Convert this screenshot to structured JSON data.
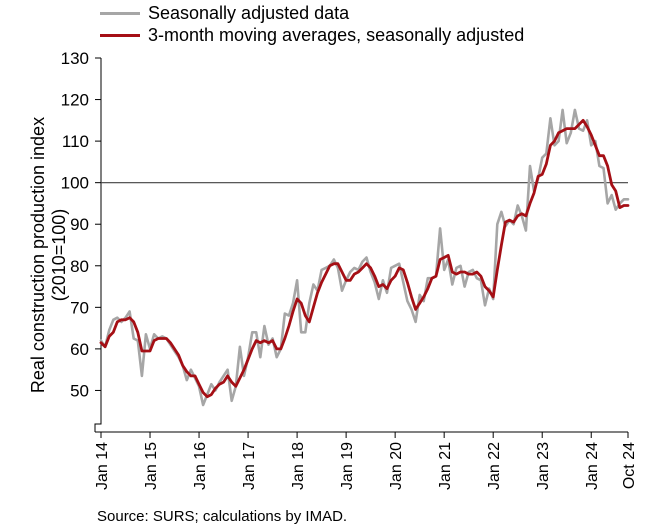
{
  "chart_data": {
    "type": "line",
    "legend": {
      "position": "top-left",
      "items": [
        {
          "label": "Seasonally adjusted data",
          "color": "#a6a6a6"
        },
        {
          "label": "3-month moving averages, seasonally adjusted",
          "color": "#a50f15"
        }
      ]
    },
    "ylabel_line1": "Real construction production index",
    "ylabel_line2": "(2010=100)",
    "ylim": [
      40,
      130
    ],
    "y_axis_break": true,
    "yticks": [
      50,
      60,
      70,
      80,
      90,
      100,
      110,
      120,
      130
    ],
    "xlim": [
      "2014-01",
      "2024-10"
    ],
    "xticks": [
      "Jan 14",
      "Jan 15",
      "Jan 16",
      "Jan 17",
      "Jan 18",
      "Jan 19",
      "Jan 20",
      "Jan 21",
      "Jan 22",
      "Jan 23",
      "Jan 24",
      "Oct 24"
    ],
    "reference_line": {
      "y": 100,
      "color": "#404040"
    },
    "grid": false,
    "series": [
      {
        "name": "Seasonally adjusted data",
        "color": "#a6a6a6",
        "points": [
          [
            "2014-01",
            62
          ],
          [
            "2014-02",
            60.5
          ],
          [
            "2014-03",
            64.5
          ],
          [
            "2014-04",
            67
          ],
          [
            "2014-05",
            67.5
          ],
          [
            "2014-06",
            66.5
          ],
          [
            "2014-07",
            67.5
          ],
          [
            "2014-08",
            69
          ],
          [
            "2014-09",
            62.5
          ],
          [
            "2014-10",
            62
          ],
          [
            "2014-11",
            53.5
          ],
          [
            "2014-12",
            63.5
          ],
          [
            "2015-01",
            60
          ],
          [
            "2015-02",
            63.5
          ],
          [
            "2015-03",
            62.5
          ],
          [
            "2015-04",
            63
          ],
          [
            "2015-05",
            62.5
          ],
          [
            "2015-06",
            61
          ],
          [
            "2015-07",
            59.5
          ],
          [
            "2015-08",
            58
          ],
          [
            "2015-09",
            56
          ],
          [
            "2015-10",
            52.5
          ],
          [
            "2015-11",
            55
          ],
          [
            "2015-12",
            53
          ],
          [
            "2016-01",
            51
          ],
          [
            "2016-02",
            46.5
          ],
          [
            "2016-03",
            49
          ],
          [
            "2016-04",
            51.5
          ],
          [
            "2016-05",
            50
          ],
          [
            "2016-06",
            52
          ],
          [
            "2016-07",
            53.5
          ],
          [
            "2016-08",
            55
          ],
          [
            "2016-09",
            47.5
          ],
          [
            "2016-10",
            51
          ],
          [
            "2016-11",
            60.5
          ],
          [
            "2016-12",
            53.5
          ],
          [
            "2017-01",
            58
          ],
          [
            "2017-02",
            64
          ],
          [
            "2017-03",
            64
          ],
          [
            "2017-04",
            58
          ],
          [
            "2017-05",
            65.5
          ],
          [
            "2017-06",
            61
          ],
          [
            "2017-07",
            62.5
          ],
          [
            "2017-08",
            58
          ],
          [
            "2017-09",
            60
          ],
          [
            "2017-10",
            68.5
          ],
          [
            "2017-11",
            68
          ],
          [
            "2017-12",
            71
          ],
          [
            "2018-01",
            76.5
          ],
          [
            "2018-02",
            64
          ],
          [
            "2018-03",
            64
          ],
          [
            "2018-04",
            71
          ],
          [
            "2018-05",
            75.5
          ],
          [
            "2018-06",
            74
          ],
          [
            "2018-07",
            79
          ],
          [
            "2018-08",
            79.5
          ],
          [
            "2018-09",
            80
          ],
          [
            "2018-10",
            81.5
          ],
          [
            "2018-11",
            79.5
          ],
          [
            "2018-12",
            74
          ],
          [
            "2019-01",
            76.5
          ],
          [
            "2019-02",
            78.5
          ],
          [
            "2019-03",
            79.5
          ],
          [
            "2019-04",
            79
          ],
          [
            "2019-05",
            81
          ],
          [
            "2019-06",
            82
          ],
          [
            "2019-07",
            78.5
          ],
          [
            "2019-08",
            76
          ],
          [
            "2019-09",
            72
          ],
          [
            "2019-10",
            76.5
          ],
          [
            "2019-11",
            73.5
          ],
          [
            "2019-12",
            79.5
          ],
          [
            "2020-01",
            80
          ],
          [
            "2020-02",
            80.5
          ],
          [
            "2020-03",
            76
          ],
          [
            "2020-04",
            71.5
          ],
          [
            "2020-05",
            69.5
          ],
          [
            "2020-06",
            66.5
          ],
          [
            "2020-07",
            73
          ],
          [
            "2020-08",
            71.5
          ],
          [
            "2020-09",
            77
          ],
          [
            "2020-10",
            77
          ],
          [
            "2020-11",
            77.5
          ],
          [
            "2020-12",
            89
          ],
          [
            "2021-01",
            79
          ],
          [
            "2021-02",
            81.5
          ],
          [
            "2021-03",
            75.5
          ],
          [
            "2021-04",
            79.5
          ],
          [
            "2021-05",
            80
          ],
          [
            "2021-06",
            75
          ],
          [
            "2021-07",
            78.5
          ],
          [
            "2021-08",
            79
          ],
          [
            "2021-09",
            77
          ],
          [
            "2021-10",
            76.5
          ],
          [
            "2021-11",
            70.5
          ],
          [
            "2021-12",
            74.5
          ],
          [
            "2022-01",
            72
          ],
          [
            "2022-02",
            90
          ],
          [
            "2022-03",
            93
          ],
          [
            "2022-04",
            89.5
          ],
          [
            "2022-05",
            91
          ],
          [
            "2022-06",
            90
          ],
          [
            "2022-07",
            94.5
          ],
          [
            "2022-08",
            92
          ],
          [
            "2022-09",
            88.5
          ],
          [
            "2022-10",
            104
          ],
          [
            "2022-11",
            98
          ],
          [
            "2022-12",
            101
          ],
          [
            "2023-01",
            106
          ],
          [
            "2023-02",
            107
          ],
          [
            "2023-03",
            115.5
          ],
          [
            "2023-04",
            109
          ],
          [
            "2023-05",
            110
          ],
          [
            "2023-06",
            117.5
          ],
          [
            "2023-07",
            109.5
          ],
          [
            "2023-08",
            112
          ],
          [
            "2023-09",
            117.5
          ],
          [
            "2023-10",
            113
          ],
          [
            "2023-11",
            112.5
          ],
          [
            "2023-12",
            115
          ],
          [
            "2024-01",
            109
          ],
          [
            "2024-02",
            110
          ],
          [
            "2024-03",
            104
          ],
          [
            "2024-04",
            103.5
          ],
          [
            "2024-05",
            95
          ],
          [
            "2024-06",
            97
          ],
          [
            "2024-07",
            93.5
          ],
          [
            "2024-08",
            95
          ],
          [
            "2024-09",
            96
          ],
          [
            "2024-10",
            96
          ]
        ]
      },
      {
        "name": "3-month moving averages, seasonally adjusted",
        "color": "#a50f15",
        "points": [
          [
            "2014-01",
            61.5
          ],
          [
            "2014-02",
            60.5
          ],
          [
            "2014-03",
            63
          ],
          [
            "2014-04",
            64
          ],
          [
            "2014-05",
            66.5
          ],
          [
            "2014-06",
            67
          ],
          [
            "2014-07",
            67
          ],
          [
            "2014-08",
            67.5
          ],
          [
            "2014-09",
            66.5
          ],
          [
            "2014-10",
            64
          ],
          [
            "2014-11",
            59.5
          ],
          [
            "2014-12",
            59.5
          ],
          [
            "2015-01",
            59.5
          ],
          [
            "2015-02",
            62
          ],
          [
            "2015-03",
            62.5
          ],
          [
            "2015-04",
            62.5
          ],
          [
            "2015-05",
            62.5
          ],
          [
            "2015-06",
            61.5
          ],
          [
            "2015-07",
            60
          ],
          [
            "2015-08",
            58.5
          ],
          [
            "2015-09",
            56
          ],
          [
            "2015-10",
            54.5
          ],
          [
            "2015-11",
            53.5
          ],
          [
            "2015-12",
            53.5
          ],
          [
            "2016-01",
            51.5
          ],
          [
            "2016-02",
            49.5
          ],
          [
            "2016-03",
            48.5
          ],
          [
            "2016-04",
            49
          ],
          [
            "2016-05",
            50.5
          ],
          [
            "2016-06",
            51.5
          ],
          [
            "2016-07",
            52
          ],
          [
            "2016-08",
            53.5
          ],
          [
            "2016-09",
            52
          ],
          [
            "2016-10",
            51
          ],
          [
            "2016-11",
            53
          ],
          [
            "2016-12",
            55
          ],
          [
            "2017-01",
            57.5
          ],
          [
            "2017-02",
            60
          ],
          [
            "2017-03",
            62
          ],
          [
            "2017-04",
            61.5
          ],
          [
            "2017-05",
            62
          ],
          [
            "2017-06",
            61.5
          ],
          [
            "2017-07",
            62
          ],
          [
            "2017-08",
            60
          ],
          [
            "2017-09",
            60
          ],
          [
            "2017-10",
            62.5
          ],
          [
            "2017-11",
            65.5
          ],
          [
            "2017-12",
            69
          ],
          [
            "2018-01",
            72
          ],
          [
            "2018-02",
            71
          ],
          [
            "2018-03",
            68
          ],
          [
            "2018-04",
            66.5
          ],
          [
            "2018-05",
            70
          ],
          [
            "2018-06",
            73.5
          ],
          [
            "2018-07",
            76
          ],
          [
            "2018-08",
            78
          ],
          [
            "2018-09",
            80
          ],
          [
            "2018-10",
            80.5
          ],
          [
            "2018-11",
            80.5
          ],
          [
            "2018-12",
            78.5
          ],
          [
            "2019-01",
            76.5
          ],
          [
            "2019-02",
            76.5
          ],
          [
            "2019-03",
            78
          ],
          [
            "2019-04",
            78.5
          ],
          [
            "2019-05",
            79.5
          ],
          [
            "2019-06",
            80.5
          ],
          [
            "2019-07",
            79.5
          ],
          [
            "2019-08",
            77.5
          ],
          [
            "2019-09",
            75
          ],
          [
            "2019-10",
            75.5
          ],
          [
            "2019-11",
            74.5
          ],
          [
            "2019-12",
            76.5
          ],
          [
            "2020-01",
            77.5
          ],
          [
            "2020-02",
            79.5
          ],
          [
            "2020-03",
            79
          ],
          [
            "2020-04",
            76
          ],
          [
            "2020-05",
            72.5
          ],
          [
            "2020-06",
            69.5
          ],
          [
            "2020-07",
            71
          ],
          [
            "2020-08",
            72.5
          ],
          [
            "2020-09",
            74.5
          ],
          [
            "2020-10",
            77
          ],
          [
            "2020-11",
            77.5
          ],
          [
            "2020-12",
            81.5
          ],
          [
            "2021-01",
            82
          ],
          [
            "2021-02",
            82.5
          ],
          [
            "2021-03",
            78.5
          ],
          [
            "2021-04",
            78
          ],
          [
            "2021-05",
            78.5
          ],
          [
            "2021-06",
            78.5
          ],
          [
            "2021-07",
            78
          ],
          [
            "2021-08",
            78
          ],
          [
            "2021-09",
            78.5
          ],
          [
            "2021-10",
            77.5
          ],
          [
            "2021-11",
            75
          ],
          [
            "2021-12",
            74
          ],
          [
            "2022-01",
            72.5
          ],
          [
            "2022-02",
            79
          ],
          [
            "2022-03",
            85
          ],
          [
            "2022-04",
            90.5
          ],
          [
            "2022-05",
            91
          ],
          [
            "2022-06",
            90.5
          ],
          [
            "2022-07",
            92
          ],
          [
            "2022-08",
            92.5
          ],
          [
            "2022-09",
            92
          ],
          [
            "2022-10",
            95
          ],
          [
            "2022-11",
            97.5
          ],
          [
            "2022-12",
            101.5
          ],
          [
            "2023-01",
            102
          ],
          [
            "2023-02",
            104.5
          ],
          [
            "2023-03",
            109
          ],
          [
            "2023-04",
            110
          ],
          [
            "2023-05",
            112
          ],
          [
            "2023-06",
            112.5
          ],
          [
            "2023-07",
            113
          ],
          [
            "2023-08",
            113
          ],
          [
            "2023-09",
            113
          ],
          [
            "2023-10",
            114
          ],
          [
            "2023-11",
            115
          ],
          [
            "2023-12",
            113.5
          ],
          [
            "2024-01",
            111.5
          ],
          [
            "2024-02",
            109
          ],
          [
            "2024-03",
            106.5
          ],
          [
            "2024-04",
            106.5
          ],
          [
            "2024-05",
            104
          ],
          [
            "2024-06",
            99.5
          ],
          [
            "2024-07",
            98
          ],
          [
            "2024-08",
            94
          ],
          [
            "2024-09",
            94.5
          ],
          [
            "2024-10",
            94.5
          ]
        ]
      }
    ],
    "source": "Source: SURS; calculations by IMAD."
  }
}
